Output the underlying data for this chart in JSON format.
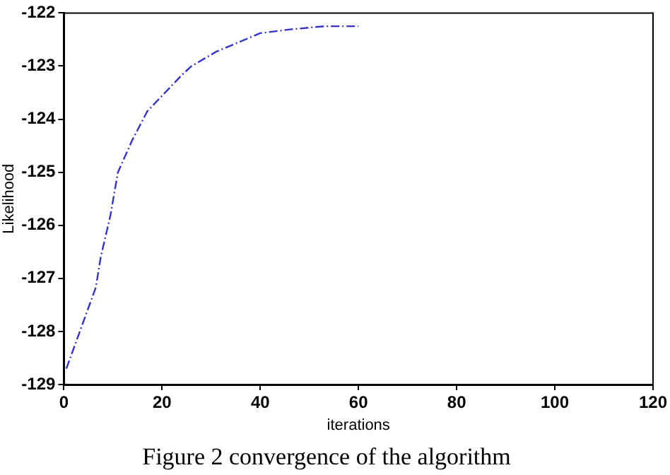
{
  "chart_data": {
    "type": "line",
    "title": "Figure 2 convergence of the algorithm",
    "xlabel": "iterations",
    "ylabel": "Likelihood",
    "series": [
      {
        "color": "#3333cc",
        "x": [
          0.5,
          6.5,
          7.5,
          9.5,
          11,
          14,
          17,
          24,
          26,
          31,
          40,
          46,
          53,
          60
        ],
        "values": [
          -128.7,
          -127.17,
          -126.6,
          -125.8,
          -125.0,
          -124.38,
          -123.85,
          -123.17,
          -123.0,
          -122.73,
          -122.38,
          -122.31,
          -122.25,
          -122.25
        ]
      }
    ],
    "xlim": [
      0,
      120
    ],
    "xticks": [
      0,
      20,
      40,
      60,
      80,
      100,
      120
    ],
    "ylim": [
      -129,
      -122
    ],
    "yticks": [
      -129,
      -128,
      -127,
      -126,
      -125,
      -124,
      -123,
      -122
    ],
    "grid": false,
    "legend": false,
    "marker": "none",
    "line_style": "dashed"
  }
}
